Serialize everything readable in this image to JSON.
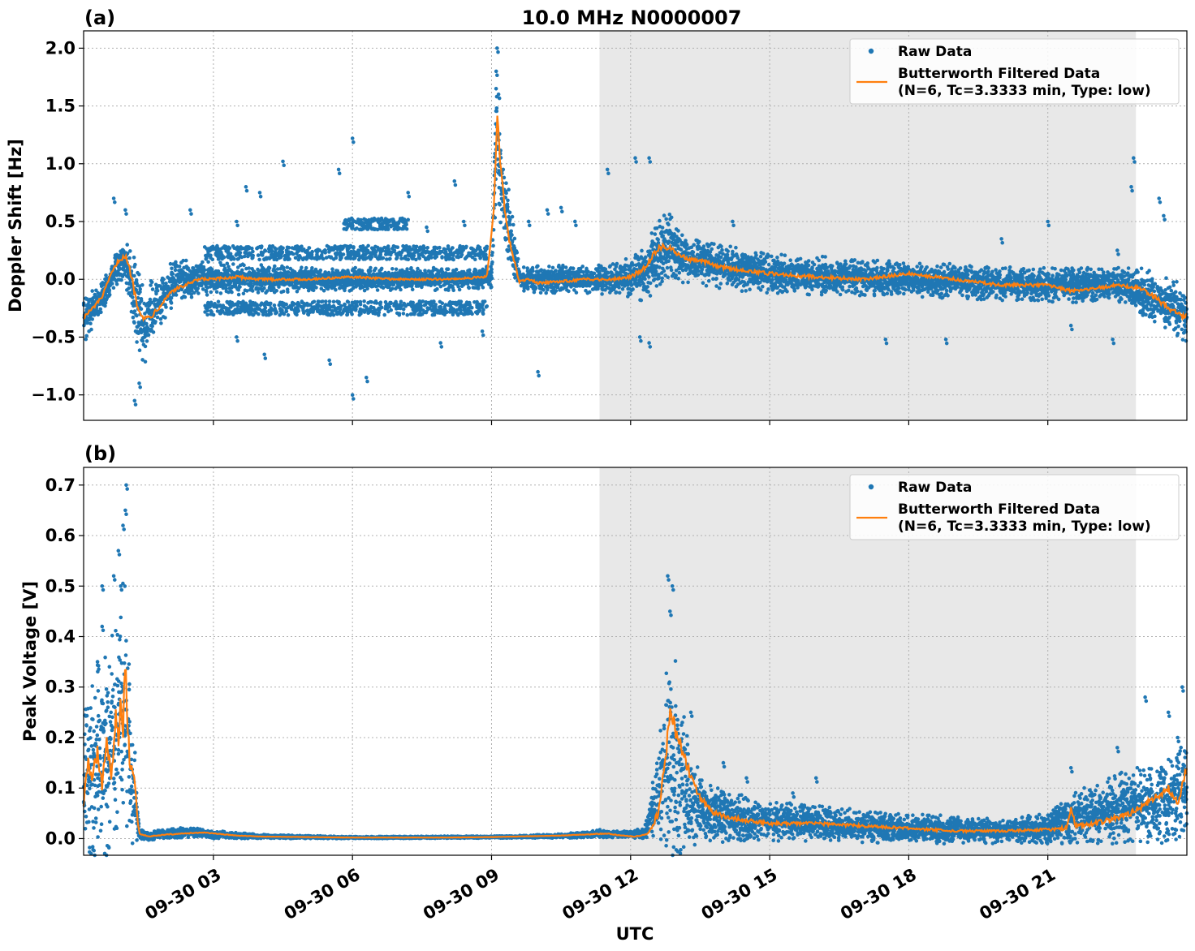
{
  "figure": {
    "title": "10.0 MHz N0000007",
    "xlabel": "UTC",
    "colors": {
      "raw": "#1f77b4",
      "filtered": "#ff7f0e",
      "night_shade": "#e8e8e8",
      "grid": "#b0b0b0"
    }
  },
  "chart_data": [
    {
      "type": "scatter",
      "panel_label": "(a)",
      "ylabel": "Doppler Shift [Hz]",
      "x_unit": "hours UTC on 09-30",
      "xlim": [
        0.2,
        24
      ],
      "ylim": [
        -1.22,
        2.15
      ],
      "yticks": [
        -1.0,
        -0.5,
        0.0,
        0.5,
        1.0,
        1.5,
        2.0
      ],
      "ytick_labels": [
        "−1.0",
        "−0.5",
        "0.0",
        "0.5",
        "1.0",
        "1.5",
        "2.0"
      ],
      "shaded_region": [
        11.33,
        22.9
      ],
      "grid": true,
      "legend": {
        "placement": "top-right",
        "entries": [
          "Raw Data",
          "Butterworth Filtered Data",
          "(N=6, Tc=3.3333 min, Type: low)"
        ]
      },
      "series": [
        {
          "name": "Raw Data",
          "style": "dots",
          "band": {
            "x": [
              0.2,
              0.6,
              0.9,
              1.1,
              1.3,
              1.5,
              1.8,
              2.2,
              3,
              5,
              7,
              8.5,
              9.0,
              9.1,
              9.2,
              9.4,
              9.6,
              10,
              11,
              11.8,
              12.3,
              12.6,
              12.8,
              13.3,
              15,
              18,
              21,
              22.5,
              23,
              23.5,
              24
            ],
            "center": [
              -0.35,
              -0.15,
              0.1,
              0.2,
              -0.2,
              -0.4,
              -0.2,
              0.0,
              0.0,
              0.0,
              0.0,
              0.0,
              0.02,
              1.2,
              0.8,
              0.4,
              0.0,
              0.0,
              0.0,
              0.0,
              0.05,
              0.2,
              0.3,
              0.15,
              0.05,
              0.0,
              -0.05,
              -0.05,
              -0.1,
              -0.2,
              -0.3
            ],
            "width": [
              0.2,
              0.15,
              0.15,
              0.2,
              0.4,
              0.35,
              0.25,
              0.18,
              0.15,
              0.1,
              0.1,
              0.1,
              0.1,
              0.5,
              0.4,
              0.3,
              0.1,
              0.12,
              0.12,
              0.15,
              0.25,
              0.3,
              0.3,
              0.2,
              0.18,
              0.15,
              0.15,
              0.15,
              0.2,
              0.25,
              0.25
            ]
          },
          "outliers": [
            [
              0.85,
              0.7
            ],
            [
              1.1,
              0.6
            ],
            [
              1.3,
              -1.05
            ],
            [
              1.4,
              -0.9
            ],
            [
              2.5,
              0.6
            ],
            [
              3.7,
              0.8
            ],
            [
              4.0,
              0.75
            ],
            [
              4.5,
              1.02
            ],
            [
              5.7,
              0.95
            ],
            [
              6.0,
              1.22
            ],
            [
              6.0,
              -1.0
            ],
            [
              6.3,
              -0.85
            ],
            [
              7.2,
              0.75
            ],
            [
              8.2,
              0.85
            ],
            [
              9.1,
              1.8
            ],
            [
              9.12,
              2.0
            ],
            [
              9.15,
              1.6
            ],
            [
              10.0,
              -0.8
            ],
            [
              10.5,
              0.62
            ],
            [
              11.5,
              0.95
            ],
            [
              12.1,
              1.05
            ],
            [
              12.4,
              1.05
            ],
            [
              12.2,
              -0.5
            ],
            [
              12.4,
              -0.55
            ],
            [
              14.2,
              0.5
            ],
            [
              17.5,
              -0.52
            ],
            [
              18.8,
              -0.52
            ],
            [
              20.0,
              0.35
            ],
            [
              21.0,
              0.5
            ],
            [
              21.5,
              -0.4
            ],
            [
              22.5,
              0.25
            ],
            [
              22.4,
              -0.52
            ],
            [
              22.8,
              0.8
            ],
            [
              22.85,
              1.05
            ],
            [
              23.4,
              0.7
            ],
            [
              23.5,
              0.55
            ],
            [
              3.5,
              0.5
            ],
            [
              3.5,
              -0.5
            ],
            [
              4.1,
              -0.65
            ],
            [
              5.5,
              -0.7
            ],
            [
              6.3,
              0.5
            ],
            [
              6.8,
              0.5
            ],
            [
              7.6,
              0.45
            ],
            [
              7.9,
              -0.55
            ],
            [
              8.4,
              0.5
            ],
            [
              8.8,
              -0.45
            ],
            [
              9.8,
              0.5
            ],
            [
              10.2,
              0.6
            ],
            [
              10.8,
              0.5
            ]
          ],
          "side_bands": [
            {
              "x_range": [
                2.8,
                8.9
              ],
              "center": 0.23,
              "width": 0.06
            },
            {
              "x_range": [
                2.8,
                8.9
              ],
              "center": -0.25,
              "width": 0.06
            },
            {
              "x_range": [
                5.8,
                7.2
              ],
              "center": 0.48,
              "width": 0.05
            }
          ]
        },
        {
          "name": "Butterworth Filtered Data",
          "style": "line",
          "x": [
            0.2,
            0.4,
            0.6,
            0.8,
            0.95,
            1.1,
            1.2,
            1.35,
            1.5,
            1.7,
            1.9,
            2.1,
            2.4,
            2.7,
            3.0,
            3.5,
            4,
            5,
            6,
            7,
            8,
            8.9,
            9.05,
            9.12,
            9.2,
            9.3,
            9.4,
            9.6,
            9.8,
            10,
            10.5,
            11,
            11.5,
            12,
            12.3,
            12.5,
            12.7,
            12.9,
            13.2,
            13.6,
            14,
            15,
            16,
            17,
            18,
            19,
            20,
            21,
            21.5,
            22,
            22.5,
            23,
            23.3,
            23.6,
            23.9
          ],
          "y": [
            -0.33,
            -0.25,
            -0.15,
            0.05,
            0.16,
            0.2,
            0.08,
            -0.2,
            -0.35,
            -0.3,
            -0.2,
            -0.1,
            -0.05,
            0.0,
            0.0,
            0.02,
            0.0,
            0.0,
            0.02,
            0.0,
            0.0,
            0.02,
            0.6,
            1.42,
            0.95,
            0.55,
            0.3,
            -0.02,
            0.0,
            -0.03,
            -0.02,
            0.0,
            0.0,
            0.02,
            0.1,
            0.22,
            0.3,
            0.25,
            0.18,
            0.15,
            0.1,
            0.05,
            0.02,
            0.0,
            0.05,
            0.0,
            -0.05,
            -0.05,
            -0.1,
            -0.08,
            -0.05,
            -0.08,
            -0.15,
            -0.25,
            -0.32
          ]
        }
      ]
    },
    {
      "type": "scatter",
      "panel_label": "(b)",
      "ylabel": "Peak Voltage [V]",
      "x_unit": "hours UTC on 09-30",
      "xlim": [
        0.2,
        24
      ],
      "ylim": [
        -0.033,
        0.735
      ],
      "yticks": [
        0.0,
        0.1,
        0.2,
        0.3,
        0.4,
        0.5,
        0.6,
        0.7
      ],
      "ytick_labels": [
        "0.0",
        "0.1",
        "0.2",
        "0.3",
        "0.4",
        "0.5",
        "0.6",
        "0.7"
      ],
      "xticks": [
        3,
        6,
        9,
        12,
        15,
        18,
        21
      ],
      "xtick_labels": [
        "09-30 03",
        "09-30 06",
        "09-30 09",
        "09-30 12",
        "09-30 15",
        "09-30 18",
        "09-30 21"
      ],
      "shaded_region": [
        11.33,
        22.9
      ],
      "grid": true,
      "legend": {
        "placement": "top-right",
        "entries": [
          "Raw Data",
          "Butterworth Filtered Data",
          "(N=6, Tc=3.3333 min, Type: low)"
        ]
      },
      "series": [
        {
          "name": "Raw Data",
          "style": "dots",
          "band": {
            "x": [
              0.2,
              0.5,
              0.8,
              1.0,
              1.1,
              1.25,
              1.4,
              1.6,
              2.0,
              2.5,
              3.0,
              4,
              6,
              9,
              10.5,
              11.3,
              11.8,
              12.3,
              12.6,
              12.8,
              13.0,
              13.3,
              13.7,
              14.2,
              15,
              16,
              18,
              20,
              21,
              21.5,
              22,
              22.5,
              23,
              23.5,
              24
            ],
            "center": [
              0.12,
              0.15,
              0.18,
              0.25,
              0.28,
              0.12,
              0.01,
              0.005,
              0.01,
              0.012,
              0.008,
              0.004,
              0.002,
              0.003,
              0.005,
              0.01,
              0.008,
              0.01,
              0.08,
              0.18,
              0.15,
              0.08,
              0.05,
              0.04,
              0.035,
              0.03,
              0.02,
              0.015,
              0.02,
              0.04,
              0.05,
              0.06,
              0.07,
              0.07,
              0.1
            ],
            "width": [
              0.15,
              0.2,
              0.22,
              0.25,
              0.25,
              0.15,
              0.01,
              0.008,
              0.01,
              0.01,
              0.008,
              0.004,
              0.002,
              0.002,
              0.004,
              0.008,
              0.006,
              0.01,
              0.1,
              0.22,
              0.2,
              0.1,
              0.06,
              0.05,
              0.04,
              0.035,
              0.03,
              0.025,
              0.03,
              0.05,
              0.06,
              0.07,
              0.08,
              0.08,
              0.1
            ]
          },
          "outliers": [
            [
              0.5,
              0.35
            ],
            [
              0.6,
              0.42
            ],
            [
              0.6,
              0.5
            ],
            [
              0.85,
              0.52
            ],
            [
              0.95,
              0.57
            ],
            [
              1.05,
              0.62
            ],
            [
              1.1,
              0.65
            ],
            [
              1.12,
              0.7
            ],
            [
              1.0,
              0.5
            ],
            [
              12.8,
              0.52
            ],
            [
              12.9,
              0.5
            ],
            [
              12.85,
              0.45
            ],
            [
              13.3,
              0.25
            ],
            [
              14.0,
              0.15
            ],
            [
              14.5,
              0.12
            ],
            [
              15.5,
              0.09
            ],
            [
              16.0,
              0.12
            ],
            [
              21.5,
              0.14
            ],
            [
              22.5,
              0.18
            ],
            [
              23.1,
              0.28
            ],
            [
              23.6,
              0.25
            ],
            [
              23.9,
              0.3
            ],
            [
              23.8,
              0.2
            ]
          ]
        },
        {
          "name": "Butterworth Filtered Data",
          "style": "line",
          "x": [
            0.2,
            0.3,
            0.4,
            0.5,
            0.6,
            0.7,
            0.8,
            0.9,
            0.95,
            1.0,
            1.05,
            1.1,
            1.15,
            1.2,
            1.3,
            1.35,
            1.4,
            1.6,
            2.0,
            2.4,
            2.8,
            3.0,
            3.5,
            4,
            6,
            8,
            9,
            10,
            10.5,
            11,
            11.5,
            11.8,
            12.1,
            12.4,
            12.6,
            12.75,
            12.85,
            12.95,
            13.1,
            13.3,
            13.5,
            13.8,
            14.2,
            15,
            16,
            17,
            18,
            19,
            20,
            21,
            21.4,
            21.5,
            21.6,
            22,
            22.5,
            23,
            23.3,
            23.6,
            23.8,
            24
          ],
          "y": [
            0.07,
            0.15,
            0.12,
            0.18,
            0.1,
            0.2,
            0.12,
            0.25,
            0.18,
            0.28,
            0.2,
            0.38,
            0.22,
            0.15,
            0.12,
            0.05,
            0.01,
            0.004,
            0.008,
            0.01,
            0.012,
            0.01,
            0.006,
            0.004,
            0.002,
            0.002,
            0.003,
            0.005,
            0.006,
            0.008,
            0.01,
            0.006,
            0.004,
            0.01,
            0.05,
            0.15,
            0.25,
            0.22,
            0.18,
            0.12,
            0.08,
            0.05,
            0.04,
            0.03,
            0.03,
            0.025,
            0.02,
            0.015,
            0.015,
            0.018,
            0.02,
            0.06,
            0.025,
            0.03,
            0.04,
            0.06,
            0.08,
            0.1,
            0.07,
            0.14
          ]
        }
      ]
    }
  ]
}
